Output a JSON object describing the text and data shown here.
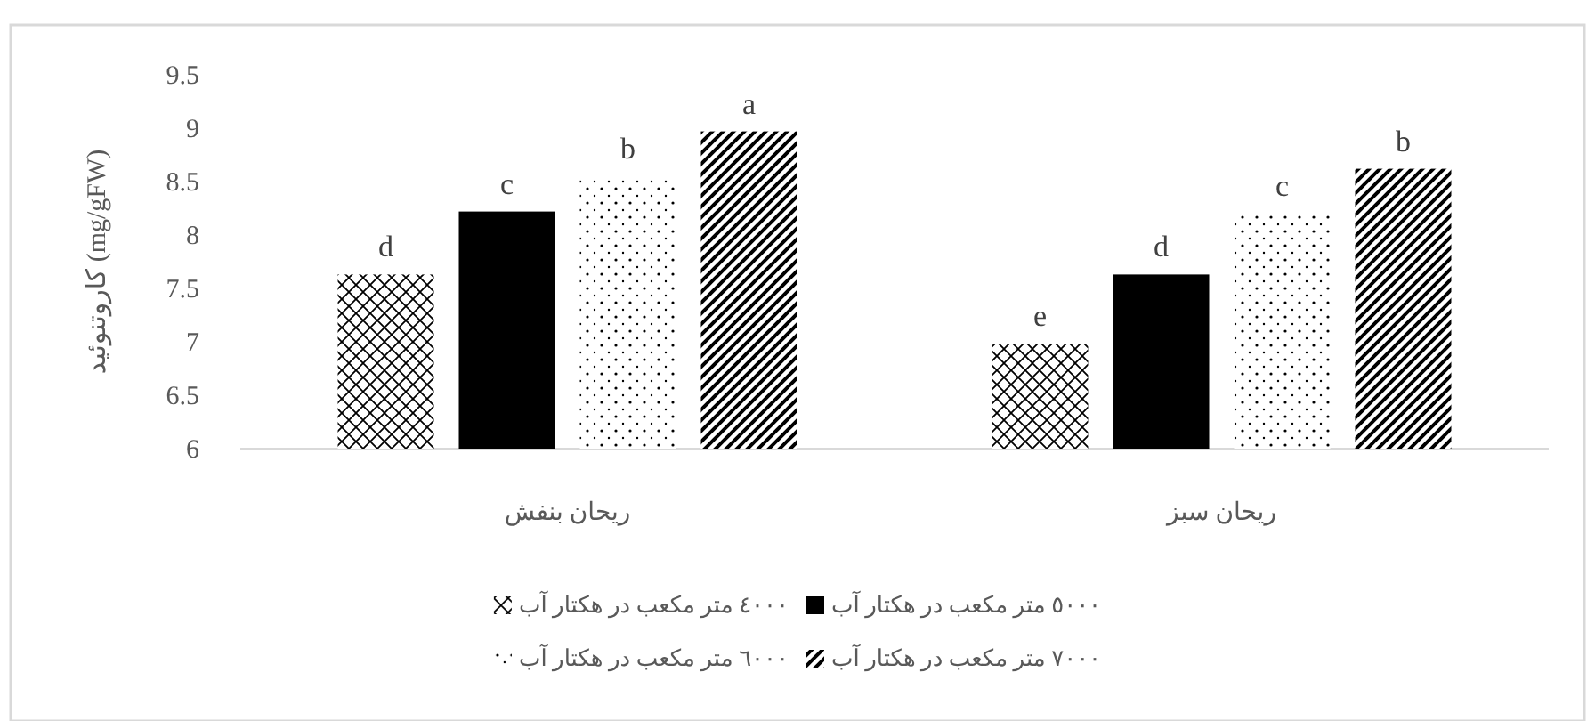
{
  "chart_data": {
    "type": "bar",
    "ylabel": "کاروتنوئید (mg/gFW)",
    "categories": [
      "ریحان بنفش",
      "ریحان سبز"
    ],
    "series": [
      {
        "name": "٤٠٠٠ متر مکعب در هکتار آب",
        "color": "#000000",
        "values": [
          7.63,
          6.98
        ],
        "value_labels": [
          "d",
          "e"
        ]
      },
      {
        "name": "٥٠٠٠ متر مکعب در هکتار آب",
        "color": "#000000",
        "values": [
          8.22,
          7.63
        ],
        "value_labels": [
          "c",
          "d"
        ]
      },
      {
        "name": "٦٠٠٠ متر مکعب در هکتار آب",
        "color": "#000000",
        "values": [
          8.55,
          8.2
        ],
        "value_labels": [
          "b",
          "c"
        ]
      },
      {
        "name": "٧٠٠٠ متر مکعب در هکتار آب",
        "color": "#000000",
        "values": [
          8.97,
          8.62
        ],
        "value_labels": [
          "a",
          "b"
        ]
      }
    ],
    "ylim": [
      6,
      9.5
    ],
    "yticks": [
      6,
      6.5,
      7,
      7.5,
      8,
      8.5,
      9,
      9.5
    ],
    "legend": "bottom",
    "grid": false
  }
}
